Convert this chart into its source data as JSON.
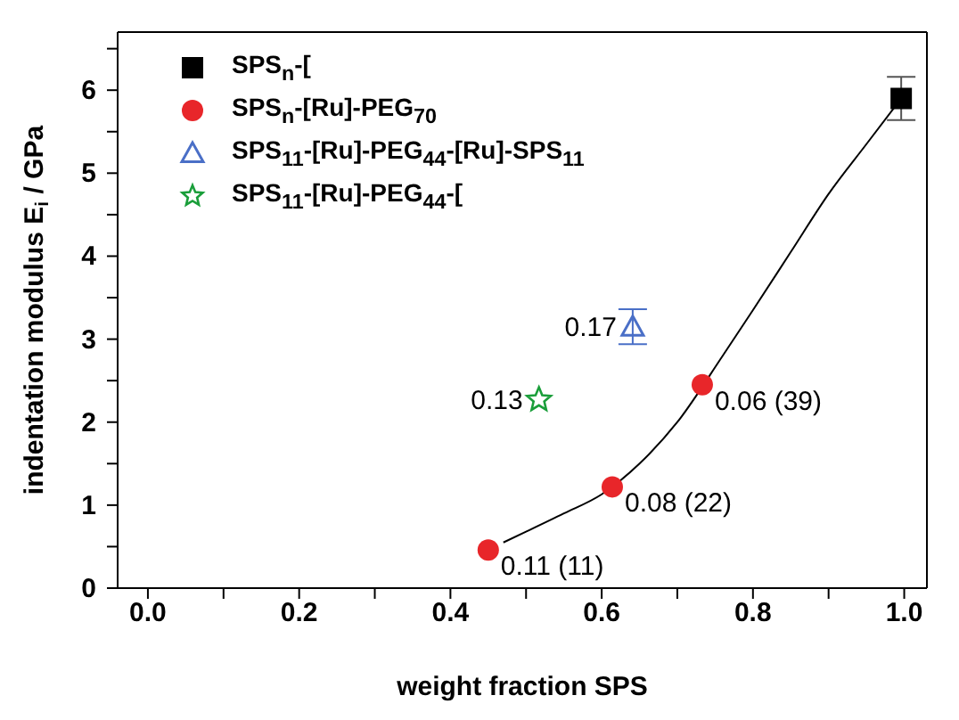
{
  "chart_data": {
    "type": "scatter",
    "xlabel": "weight fraction SPS",
    "ylabel": "indentation modulus E$_{i}$ / GPa",
    "xlim": [
      -0.04,
      1.03
    ],
    "ylim": [
      0,
      6.7
    ],
    "xticks": [
      {
        "value": 0,
        "label": "0.0"
      },
      {
        "value": 0.1,
        "label": null
      },
      {
        "value": 0.2,
        "label": "0.2"
      },
      {
        "value": 0.3,
        "label": null
      },
      {
        "value": 0.4,
        "label": "0.4"
      },
      {
        "value": 0.5,
        "label": null
      },
      {
        "value": 0.6,
        "label": "0.6"
      },
      {
        "value": 0.7,
        "label": null
      },
      {
        "value": 0.8,
        "label": "0.8"
      },
      {
        "value": 0.9,
        "label": null
      },
      {
        "value": 1,
        "label": "1.0"
      }
    ],
    "yticks": [
      0,
      {
        "value": 0.5,
        "label": null
      },
      1,
      {
        "value": 1.5,
        "label": null
      },
      2,
      {
        "value": 2.5,
        "label": null
      },
      3,
      {
        "value": 3.5,
        "label": null
      },
      4,
      {
        "value": 4.5,
        "label": null
      },
      5,
      {
        "value": 5.5,
        "label": null
      },
      6,
      {
        "value": 6.5,
        "label": null
      }
    ],
    "legend": "top left",
    "grid": false,
    "series": [
      {
        "name": "SPS$_{n}$-[",
        "color": "#000000",
        "marker": "square",
        "x": [
          0.996
        ],
        "values": [
          5.9
        ],
        "errors": [
          0.26
        ]
      },
      {
        "name": "SPS$_{n}$-[Ru]-PEG$_{70}$",
        "color": "#e8262a",
        "marker": "circle",
        "x": [
          0.45,
          0.614,
          0.733
        ],
        "values": [
          0.46,
          1.22,
          2.45
        ]
      },
      {
        "name": "SPS$_{11}$-[Ru]-PEG$_{44}$-[Ru]-SPS$_{11}$",
        "color": "#4a6fc7",
        "marker": "triangle",
        "x": [
          0.641
        ],
        "values": [
          3.15
        ],
        "errors": [
          0.21
        ]
      },
      {
        "name": "SPS$_{11}$-[Ru]-PEG$_{44}$-[",
        "color": "#1a9e3a",
        "marker": "star",
        "x": [
          0.517
        ],
        "values": [
          2.27
        ]
      },
      {
        "type": "line",
        "color": "#000000",
        "marker": "none",
        "x": [
          0.47,
          0.5,
          0.55,
          0.6,
          0.65,
          0.7,
          0.76,
          0.8,
          0.85,
          0.9,
          0.95,
          0.996
        ],
        "values": [
          0.55,
          0.68,
          0.9,
          1.13,
          1.5,
          2.0,
          2.8,
          3.35,
          4.05,
          4.75,
          5.35,
          5.9
        ]
      }
    ],
    "annotations": [
      {
        "text": "0.11 (11)",
        "x": 0.45,
        "y": 0.46
      },
      {
        "text": "0.08 (22)",
        "x": 0.614,
        "y": 1.22
      },
      {
        "text": "0.06 (39)",
        "x": 0.733,
        "y": 2.45
      },
      {
        "text": "0.17",
        "x": 0.641,
        "y": 3.15
      },
      {
        "text": "0.13",
        "x": 0.517,
        "y": 2.27
      }
    ]
  }
}
